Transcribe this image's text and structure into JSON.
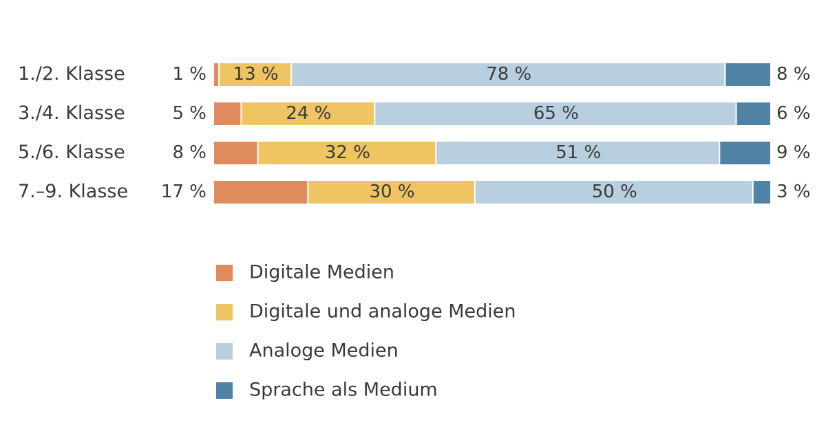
{
  "chart_data": {
    "type": "bar",
    "orientation": "horizontal",
    "stacked": true,
    "percent_suffix": " %",
    "categories": [
      "1./2. Klasse",
      "3./4. Klasse",
      "5./6. Klasse",
      "7.–9. Klasse"
    ],
    "series": [
      {
        "name": "Digitale Medien",
        "color": "#e08b5e",
        "values": [
          1,
          5,
          8,
          17
        ]
      },
      {
        "name": "Digitale und analoge Medien",
        "color": "#eec562",
        "values": [
          13,
          24,
          32,
          30
        ]
      },
      {
        "name": "Analoge Medien",
        "color": "#b8cfdf",
        "values": [
          78,
          65,
          51,
          50
        ]
      },
      {
        "name": "Sprache als Medium",
        "color": "#4f82a5",
        "values": [
          8,
          6,
          9,
          3
        ]
      }
    ],
    "legend_position": "bottom",
    "xlim": [
      0,
      100
    ]
  }
}
